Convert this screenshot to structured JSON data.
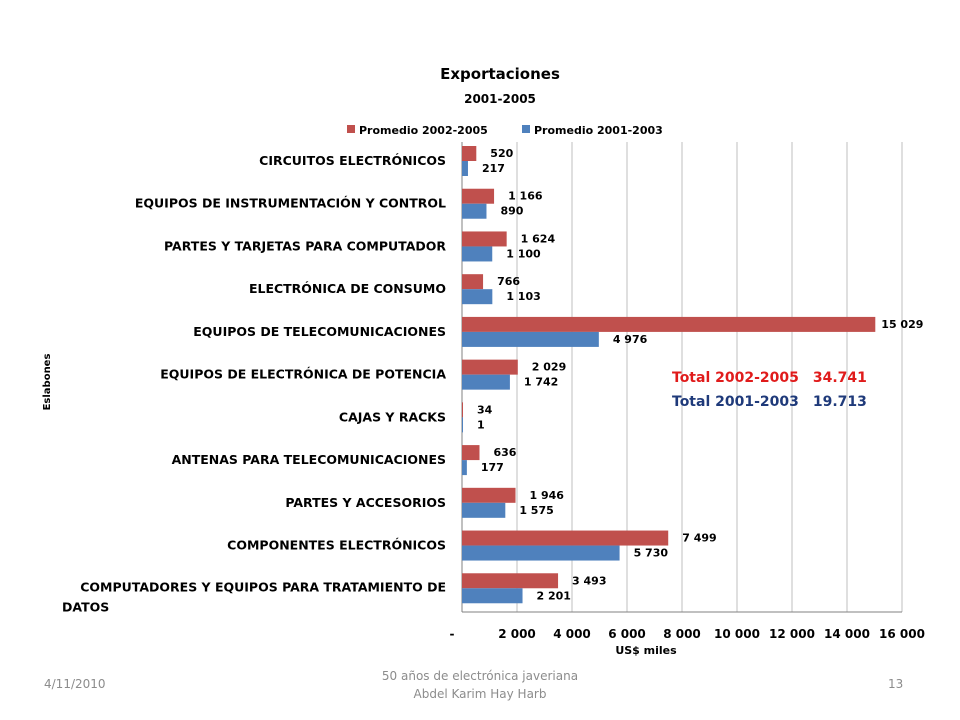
{
  "chart_data": {
    "type": "bar",
    "orientation": "horizontal",
    "title": "Exportaciones",
    "subtitle": "2001-2005",
    "xlabel": "US$ miles",
    "ylabel": "Eslabones",
    "xlim": [
      0,
      16000
    ],
    "x_ticks": [
      "-",
      "2 000",
      "4 000",
      "6 000",
      "8 000",
      "10 000",
      "12 000",
      "14 000",
      "16 000"
    ],
    "grid": "vertical",
    "legend_position": "top",
    "categories": [
      "CIRCUITOS ELECTRÓNICOS",
      "EQUIPOS DE INSTRUMENTACIÓN Y CONTROL",
      "PARTES Y TARJETAS PARA COMPUTADOR",
      "ELECTRÓNICA DE CONSUMO",
      "EQUIPOS DE TELECOMUNICACIONES",
      "EQUIPOS DE ELECTRÓNICA DE POTENCIA",
      "CAJAS Y RACKS",
      "ANTENAS PARA TELECOMUNICACIONES",
      "PARTES Y ACCESORIOS",
      "COMPONENTES ELECTRÓNICOS",
      "COMPUTADORES Y EQUIPOS PARA TRATAMIENTO DE DATOS"
    ],
    "series": [
      {
        "name": "Promedio 2002-2005",
        "color": "#c0504d",
        "values": [
          520,
          1166,
          1624,
          766,
          15029,
          2029,
          34,
          636,
          1946,
          7499,
          3493
        ],
        "labels": [
          "520",
          "1 166",
          "1 624",
          "766",
          "15 029",
          "2 029",
          "34",
          "636",
          "1 946",
          "7 499",
          "3 493"
        ]
      },
      {
        "name": "Promedio 2001-2003",
        "color": "#4f81bd",
        "values": [
          217,
          890,
          1100,
          1103,
          4976,
          1742,
          1,
          177,
          1575,
          5730,
          2201
        ],
        "labels": [
          "217",
          "890",
          "1 100",
          "1 103",
          "4 976",
          "1 742",
          "1",
          "177",
          "1 575",
          "5 730",
          "2 201"
        ]
      }
    ]
  },
  "totals": [
    {
      "label": "Total 2002-2005",
      "value": "34.741",
      "color": "#e01b1b"
    },
    {
      "label": "Total 2001-2003",
      "value": "19.713",
      "color": "#1f3a7a"
    }
  ],
  "footer": {
    "date": "4/11/2010",
    "center_line1": "50 años de electrónica javeriana",
    "center_line2": "Abdel Karim Hay Harb",
    "page": "13"
  }
}
